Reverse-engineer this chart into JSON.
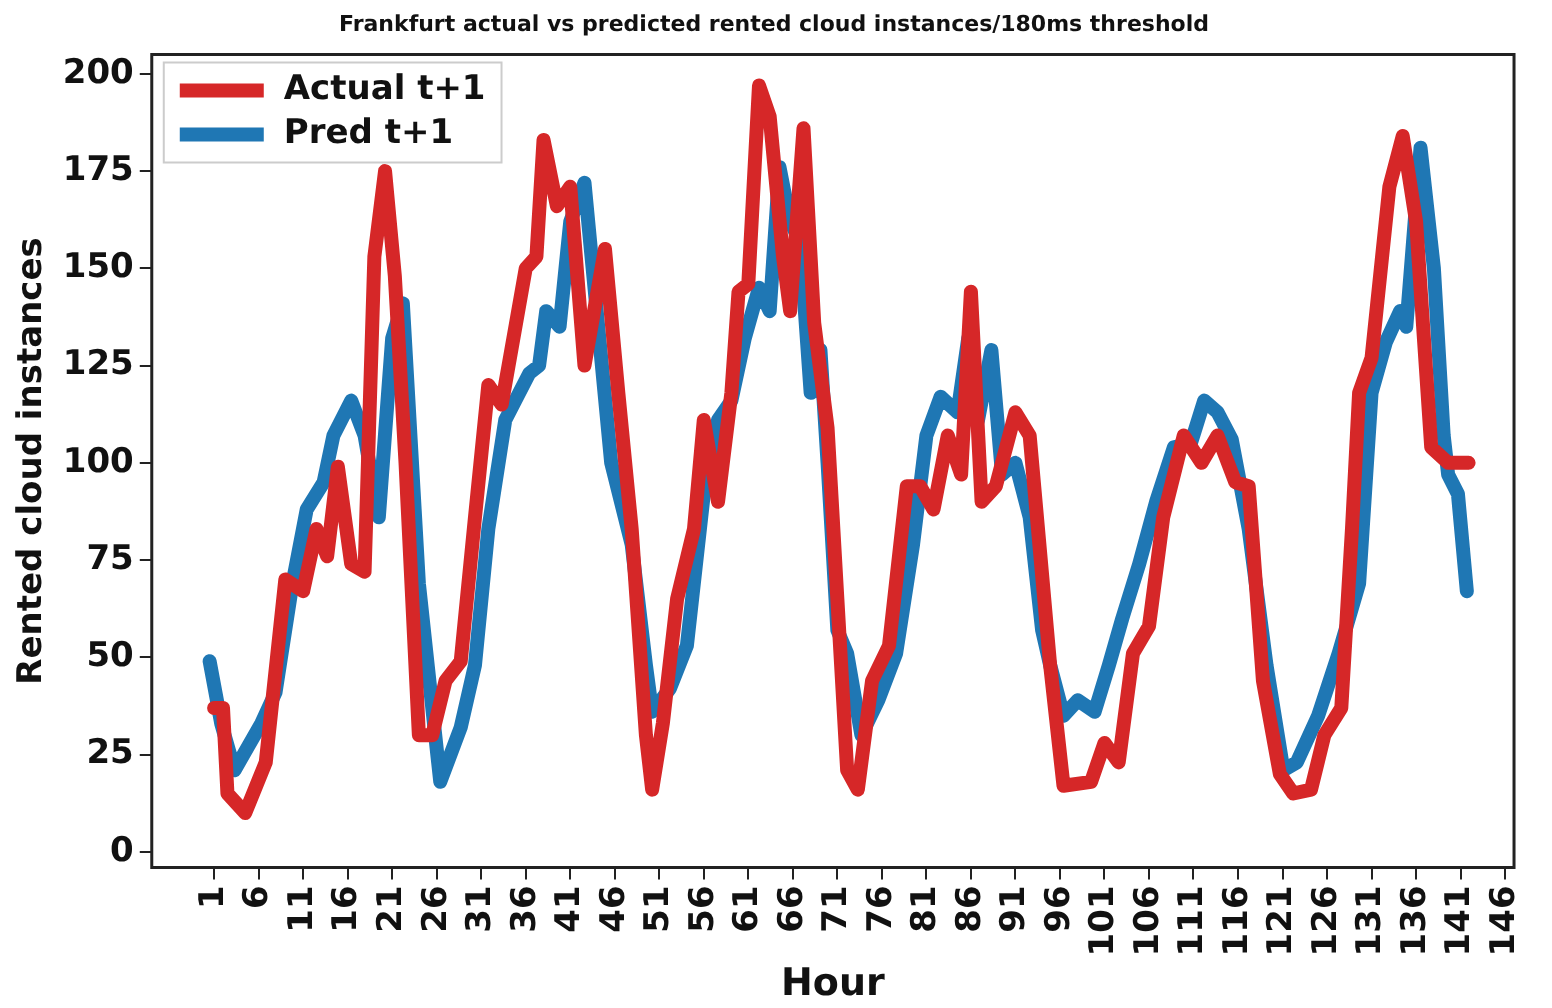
{
  "chart_data": {
    "type": "line",
    "title": "Frankfurt actual vs predicted rented cloud instances/180ms threshold",
    "xlabel": "Hour",
    "ylabel": "Rented cloud instances",
    "xlim": [
      -6,
      147
    ],
    "xticks": [
      1,
      6,
      11,
      16,
      21,
      26,
      31,
      36,
      41,
      46,
      51,
      56,
      61,
      66,
      71,
      76,
      81,
      86,
      91,
      96,
      101,
      106,
      111,
      116,
      121,
      126,
      131,
      136,
      141,
      146
    ],
    "ylim": [
      -4,
      205
    ],
    "yticks": [
      0,
      25,
      50,
      75,
      100,
      125,
      150,
      175,
      200
    ],
    "grid": false,
    "legend": "top left",
    "marker": "none",
    "line_style": "solid",
    "series": [
      {
        "name": "Actual t+1",
        "color": "#d62728",
        "x": [
          1,
          2,
          2.5,
          4.5,
          6.8,
          9,
          11,
          12.5,
          13.7,
          14.9,
          16.4,
          17.9,
          19,
          20.2,
          21.3,
          22.5,
          24,
          25.5,
          27,
          28.7,
          30.3,
          31.8,
          33.3,
          36,
          37.2,
          38,
          39.5,
          41,
          42.6,
          44.9,
          46.4,
          47.9,
          49.5,
          50.2,
          51.4,
          53,
          54.9,
          56,
          57.6,
          59.1,
          59.9,
          61,
          62.2,
          63.4,
          64.9,
          65.7,
          67.2,
          68.4,
          69.9,
          71,
          72.1,
          73.3,
          74.9,
          76.8,
          78.8,
          80.3,
          81.8,
          83.4,
          84.9,
          86,
          87.2,
          88.8,
          91,
          92.6,
          94.9,
          96.4,
          99.5,
          101,
          102.6,
          104.2,
          106,
          107.6,
          109.9,
          111.9,
          113.7,
          115.7,
          117.2,
          118.8,
          120.7,
          122.2,
          124.2,
          125.7,
          127.6,
          128.8,
          129.6,
          131,
          133,
          134.5,
          136,
          137.7,
          139.6,
          141.9
        ],
        "values": [
          37,
          37,
          15,
          10,
          23,
          70,
          67,
          83,
          76,
          99,
          74,
          72,
          153,
          175,
          148,
          100,
          30,
          30,
          44,
          49,
          86,
          120,
          115,
          150,
          153,
          183,
          166,
          171,
          125,
          155,
          118,
          83,
          30,
          16,
          33,
          65,
          83,
          111,
          90,
          118,
          144,
          146,
          197,
          189,
          153,
          139,
          186,
          136,
          109,
          65,
          21,
          16,
          44,
          53,
          94,
          94,
          88,
          107,
          97,
          144,
          90,
          94,
          113,
          107,
          48,
          17,
          18,
          28,
          23,
          51,
          58,
          86,
          107,
          100,
          107,
          95,
          94,
          44,
          20,
          15,
          16,
          30,
          37,
          83,
          118,
          127,
          171,
          184,
          162,
          104,
          100,
          100
        ]
      },
      {
        "name": "Pred t+1",
        "color": "#1f77b4",
        "x": [
          0.5,
          1.8,
          3.3,
          6.3,
          7.9,
          9.8,
          11.4,
          13.3,
          14.4,
          16.4,
          17.9,
          19.5,
          21,
          22.2,
          24,
          26.4,
          28.7,
          30.3,
          31.8,
          33.7,
          36.4,
          37.5,
          38.3,
          39.8,
          41,
          42.6,
          44.1,
          45.6,
          47.9,
          49.5,
          50.2,
          52.2,
          54.1,
          56,
          57.6,
          59.1,
          60.6,
          62.2,
          63.4,
          64.5,
          65.7,
          66.8,
          68,
          69.1,
          69.9,
          71,
          72.1,
          73.7,
          75.6,
          77.6,
          79.5,
          81,
          82.6,
          84.5,
          85.7,
          86.8,
          88.3,
          89.5,
          91,
          92.6,
          94,
          94.9,
          96.4,
          98,
          99.9,
          101.5,
          103,
          104.9,
          106.8,
          108.8,
          110.7,
          112.2,
          113.7,
          115.3,
          117.2,
          119.2,
          121.1,
          122.6,
          125,
          127.3,
          129.6,
          131,
          132.6,
          134.2,
          134.9,
          136.5,
          138,
          139.1,
          139.6,
          140.7,
          141.7
        ],
        "values": [
          49,
          33,
          21,
          33,
          41,
          69,
          88,
          95,
          107,
          116,
          107,
          86,
          132,
          141,
          69,
          18,
          32,
          48,
          83,
          111,
          123,
          125,
          139,
          135,
          162,
          172,
          136,
          100,
          79,
          48,
          36,
          42,
          53,
          92,
          111,
          116,
          132,
          145,
          139,
          176,
          162,
          157,
          118,
          129,
          100,
          57,
          51,
          30,
          39,
          51,
          79,
          107,
          117,
          113,
          132,
          111,
          129,
          97,
          100,
          86,
          57,
          48,
          35,
          39,
          36,
          48,
          60,
          74,
          90,
          104,
          105,
          116,
          113,
          106,
          83,
          48,
          21,
          23,
          35,
          51,
          69,
          118,
          131,
          139,
          135,
          181,
          150,
          107,
          97,
          92,
          67
        ]
      }
    ]
  }
}
